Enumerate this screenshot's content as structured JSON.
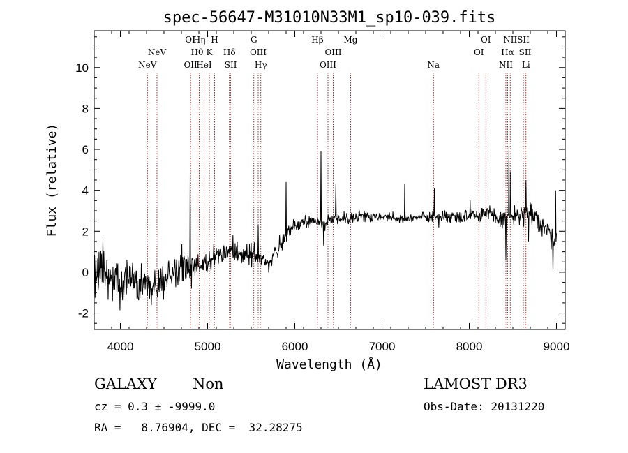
{
  "chart_data": {
    "type": "line",
    "title": "spec-56647-M31010N33M1_sp10-039.fits",
    "xlabel": "Wavelength (Å)",
    "ylabel": "Flux (relative)",
    "xlim": [
      3700,
      9100
    ],
    "ylim": [
      -2.8,
      11.8
    ],
    "xticks": [
      4000,
      5000,
      6000,
      7000,
      8000,
      9000
    ],
    "yticks": [
      -2,
      0,
      2,
      4,
      6,
      8,
      10
    ],
    "continuum": [
      {
        "x": 3700,
        "y": 0.0
      },
      {
        "x": 3800,
        "y": 0.0
      },
      {
        "x": 3900,
        "y": -0.6
      },
      {
        "x": 4000,
        "y": -0.5
      },
      {
        "x": 4100,
        "y": -0.2
      },
      {
        "x": 4200,
        "y": -0.6
      },
      {
        "x": 4300,
        "y": -0.7
      },
      {
        "x": 4400,
        "y": -0.7
      },
      {
        "x": 4500,
        "y": -0.3
      },
      {
        "x": 4600,
        "y": -0.1
      },
      {
        "x": 4700,
        "y": 0.2
      },
      {
        "x": 4800,
        "y": 0.2
      },
      {
        "x": 4900,
        "y": 0.3
      },
      {
        "x": 5000,
        "y": 0.5
      },
      {
        "x": 5100,
        "y": 0.8
      },
      {
        "x": 5200,
        "y": 1.0
      },
      {
        "x": 5300,
        "y": 1.0
      },
      {
        "x": 5400,
        "y": 0.8
      },
      {
        "x": 5500,
        "y": 1.0
      },
      {
        "x": 5600,
        "y": 0.7
      },
      {
        "x": 5700,
        "y": 0.4
      },
      {
        "x": 5800,
        "y": 1.0
      },
      {
        "x": 5900,
        "y": 1.8
      },
      {
        "x": 6000,
        "y": 2.2
      },
      {
        "x": 6100,
        "y": 2.4
      },
      {
        "x": 6200,
        "y": 2.5
      },
      {
        "x": 6300,
        "y": 2.4
      },
      {
        "x": 6400,
        "y": 2.5
      },
      {
        "x": 6500,
        "y": 2.6
      },
      {
        "x": 6700,
        "y": 2.7
      },
      {
        "x": 7000,
        "y": 2.7
      },
      {
        "x": 7300,
        "y": 2.6
      },
      {
        "x": 7500,
        "y": 2.7
      },
      {
        "x": 7800,
        "y": 2.7
      },
      {
        "x": 8000,
        "y": 2.8
      },
      {
        "x": 8200,
        "y": 2.9
      },
      {
        "x": 8300,
        "y": 2.6
      },
      {
        "x": 8400,
        "y": 2.6
      },
      {
        "x": 8500,
        "y": 2.7
      },
      {
        "x": 8600,
        "y": 2.8
      },
      {
        "x": 8700,
        "y": 2.8
      },
      {
        "x": 8800,
        "y": 2.5
      },
      {
        "x": 8900,
        "y": 2.0
      },
      {
        "x": 9000,
        "y": 1.6
      }
    ],
    "noise_amplitude": [
      {
        "x": 3700,
        "a": 0.9
      },
      {
        "x": 4500,
        "a": 0.6
      },
      {
        "x": 5500,
        "a": 0.35
      },
      {
        "x": 6000,
        "a": 0.3
      },
      {
        "x": 7000,
        "a": 0.15
      },
      {
        "x": 8000,
        "a": 0.25
      },
      {
        "x": 9000,
        "a": 0.5
      }
    ],
    "spikes": [
      {
        "x": 4800,
        "y": 4.9
      },
      {
        "x": 5580,
        "y": 2.3
      },
      {
        "x": 5900,
        "y": 4.4
      },
      {
        "x": 6300,
        "y": 5.9
      },
      {
        "x": 6330,
        "y": 1.3
      },
      {
        "x": 6470,
        "y": 4.3
      },
      {
        "x": 7260,
        "y": 4.3
      },
      {
        "x": 7600,
        "y": 4.1
      },
      {
        "x": 8010,
        "y": 3.5
      },
      {
        "x": 8420,
        "y": 0.6
      },
      {
        "x": 8455,
        "y": 6.1
      },
      {
        "x": 8475,
        "y": 4.9
      },
      {
        "x": 8650,
        "y": 4.5
      },
      {
        "x": 8680,
        "y": 1.5
      },
      {
        "x": 8960,
        "y": 0.0
      },
      {
        "x": 8990,
        "y": 4.0
      }
    ],
    "emission_lines": [
      {
        "x": 4310,
        "label": "NeV",
        "row": 3
      },
      {
        "x": 4420,
        "label": "NeV",
        "row": 2
      },
      {
        "x": 4800,
        "label": "OI",
        "row": 1
      },
      {
        "x": 4805,
        "label": "OII",
        "row": 3
      },
      {
        "x": 4880,
        "label": "Hθ",
        "row": 2
      },
      {
        "x": 4905,
        "label": "Hη",
        "row": 1
      },
      {
        "x": 4960,
        "label": "HeI",
        "row": 3
      },
      {
        "x": 5020,
        "label": "K",
        "row": 2
      },
      {
        "x": 5080,
        "label": "H",
        "row": 1
      },
      {
        "x": 5250,
        "label": "Hδ",
        "row": 2
      },
      {
        "x": 5265,
        "label": "SII",
        "row": 3
      },
      {
        "x": 5530,
        "label": "G",
        "row": 1
      },
      {
        "x": 5580,
        "label": "OIII",
        "row": 2
      },
      {
        "x": 5610,
        "label": "Hγ",
        "row": 3
      },
      {
        "x": 6260,
        "label": "Hβ",
        "row": 1
      },
      {
        "x": 6380,
        "label": "OIII",
        "row": 3
      },
      {
        "x": 6440,
        "label": "OIII",
        "row": 2
      },
      {
        "x": 6640,
        "label": "Mg",
        "row": 1
      },
      {
        "x": 7590,
        "label": "Na",
        "row": 3
      },
      {
        "x": 8110,
        "label": "OI",
        "row": 2
      },
      {
        "x": 8190,
        "label": "OI",
        "row": 1
      },
      {
        "x": 8420,
        "label": "NII",
        "row": 3
      },
      {
        "x": 8440,
        "label": "Hα",
        "row": 2
      },
      {
        "x": 8470,
        "label": "NII",
        "row": 1
      },
      {
        "x": 8620,
        "label": "SII",
        "row": 1
      },
      {
        "x": 8640,
        "label": "SII",
        "row": 2
      },
      {
        "x": 8650,
        "label": "Li",
        "row": 3
      }
    ],
    "line_color": "#000000",
    "marker_color": "#8b0000"
  },
  "info": {
    "object_class": "GALAXY",
    "subclass": "Non",
    "survey": "LAMOST DR3",
    "cz_text": "cz = 0.3 ± -9999.0",
    "obs_date": "Obs-Date: 20131220",
    "radec": "RA =   8.76904, DEC =  32.28275"
  }
}
